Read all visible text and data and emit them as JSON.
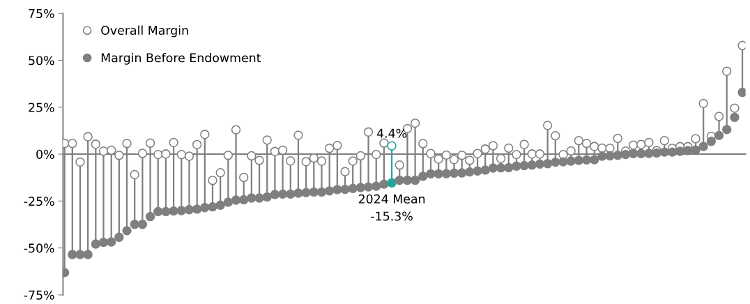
{
  "chart_data": {
    "type": "lollipop",
    "categories": [
      null,
      null,
      null,
      null,
      null,
      null,
      null,
      null,
      null,
      null,
      null,
      null,
      null,
      null,
      null,
      null,
      null,
      null,
      null,
      null,
      null,
      null,
      null,
      null,
      null,
      null,
      null,
      null,
      null,
      null,
      null,
      null,
      null,
      null,
      null,
      null,
      null,
      null,
      null,
      null,
      null,
      null,
      null,
      null,
      null,
      null,
      null,
      null,
      null,
      null,
      null,
      null,
      null,
      null,
      null,
      null,
      null,
      null,
      null,
      null,
      null,
      null,
      null,
      null,
      null,
      null,
      null,
      null,
      null,
      null,
      null,
      null,
      null,
      null,
      null,
      null,
      null,
      null,
      null,
      null,
      null,
      null,
      null,
      null,
      null,
      null,
      null,
      null
    ],
    "series": [
      {
        "name": "Overall Margin",
        "color": "#7f7f7f",
        "colors": [
          "#7f7f7f",
          "#7f7f7f",
          "#7f7f7f",
          "#7f7f7f",
          "#7f7f7f",
          "#7f7f7f",
          "#7f7f7f",
          "#7f7f7f",
          "#7f7f7f",
          "#7f7f7f",
          "#7f7f7f",
          "#7f7f7f",
          "#7f7f7f",
          "#7f7f7f",
          "#7f7f7f",
          "#7f7f7f",
          "#7f7f7f",
          "#7f7f7f",
          "#7f7f7f",
          "#7f7f7f",
          "#7f7f7f",
          "#7f7f7f",
          "#7f7f7f",
          "#7f7f7f",
          "#7f7f7f",
          "#7f7f7f",
          "#7f7f7f",
          "#7f7f7f",
          "#7f7f7f",
          "#7f7f7f",
          "#7f7f7f",
          "#7f7f7f",
          "#7f7f7f",
          "#7f7f7f",
          "#7f7f7f",
          "#7f7f7f",
          "#7f7f7f",
          "#7f7f7f",
          "#7f7f7f",
          "#7f7f7f",
          "#7f7f7f",
          "#7f7f7f",
          "#26a69a",
          "#7f7f7f",
          "#7f7f7f",
          "#7f7f7f",
          "#7f7f7f",
          "#7f7f7f",
          "#7f7f7f",
          "#7f7f7f",
          "#7f7f7f",
          "#7f7f7f",
          "#7f7f7f",
          "#7f7f7f",
          "#7f7f7f",
          "#7f7f7f",
          "#7f7f7f",
          "#7f7f7f",
          "#7f7f7f",
          "#7f7f7f",
          "#7f7f7f",
          "#7f7f7f",
          "#7f7f7f",
          "#7f7f7f",
          "#7f7f7f",
          "#7f7f7f",
          "#7f7f7f",
          "#7f7f7f",
          "#7f7f7f",
          "#7f7f7f",
          "#7f7f7f",
          "#7f7f7f",
          "#7f7f7f",
          "#7f7f7f",
          "#7f7f7f",
          "#7f7f7f",
          "#7f7f7f",
          "#7f7f7f",
          "#7f7f7f",
          "#7f7f7f",
          "#7f7f7f",
          "#7f7f7f",
          "#7f7f7f",
          "#7f7f7f",
          "#7f7f7f",
          "#7f7f7f",
          "#7f7f7f",
          "#7f7f7f"
        ],
        "values": [
          5.7,
          5.7,
          -4.2,
          9.3,
          5.3,
          1.6,
          2.1,
          -0.6,
          5.7,
          -10.9,
          0.4,
          5.9,
          -0.2,
          0.1,
          6.2,
          -0.2,
          -1.1,
          5.1,
          10.5,
          -14.0,
          -9.9,
          -0.6,
          13.0,
          -12.4,
          -0.9,
          -3.3,
          7.5,
          1.4,
          2.1,
          -3.6,
          10.1,
          -4.0,
          -2.1,
          -3.7,
          3.1,
          4.6,
          -9.3,
          -3.7,
          -0.9,
          11.8,
          -0.2,
          5.9,
          4.4,
          -5.8,
          13.6,
          16.5,
          5.6,
          0.3,
          -2.6,
          -0.5,
          -2.9,
          -0.6,
          -3.3,
          0.3,
          2.7,
          4.5,
          -2.3,
          3.2,
          -0.2,
          5.2,
          0.1,
          0.1,
          15.3,
          9.8,
          -0.2,
          1.7,
          7.2,
          5.7,
          4.1,
          3.2,
          3.1,
          8.4,
          1.6,
          4.8,
          5.2,
          6.2,
          1.9,
          7.2,
          3.1,
          4.0,
          4.0,
          8.2,
          27.0,
          9.4,
          20.1,
          44.2,
          24.5,
          57.9
        ]
      },
      {
        "name": "Margin Before Endowment",
        "color": "#7f7f7f",
        "colors": [
          "#7f7f7f",
          "#7f7f7f",
          "#7f7f7f",
          "#7f7f7f",
          "#7f7f7f",
          "#7f7f7f",
          "#7f7f7f",
          "#7f7f7f",
          "#7f7f7f",
          "#7f7f7f",
          "#7f7f7f",
          "#7f7f7f",
          "#7f7f7f",
          "#7f7f7f",
          "#7f7f7f",
          "#7f7f7f",
          "#7f7f7f",
          "#7f7f7f",
          "#7f7f7f",
          "#7f7f7f",
          "#7f7f7f",
          "#7f7f7f",
          "#7f7f7f",
          "#7f7f7f",
          "#7f7f7f",
          "#7f7f7f",
          "#7f7f7f",
          "#7f7f7f",
          "#7f7f7f",
          "#7f7f7f",
          "#7f7f7f",
          "#7f7f7f",
          "#7f7f7f",
          "#7f7f7f",
          "#7f7f7f",
          "#7f7f7f",
          "#7f7f7f",
          "#7f7f7f",
          "#7f7f7f",
          "#7f7f7f",
          "#7f7f7f",
          "#7f7f7f",
          "#26a69a",
          "#7f7f7f",
          "#7f7f7f",
          "#7f7f7f",
          "#7f7f7f",
          "#7f7f7f",
          "#7f7f7f",
          "#7f7f7f",
          "#7f7f7f",
          "#7f7f7f",
          "#7f7f7f",
          "#7f7f7f",
          "#7f7f7f",
          "#7f7f7f",
          "#7f7f7f",
          "#7f7f7f",
          "#7f7f7f",
          "#7f7f7f",
          "#7f7f7f",
          "#7f7f7f",
          "#7f7f7f",
          "#7f7f7f",
          "#7f7f7f",
          "#7f7f7f",
          "#7f7f7f",
          "#7f7f7f",
          "#7f7f7f",
          "#7f7f7f",
          "#7f7f7f",
          "#7f7f7f",
          "#7f7f7f",
          "#7f7f7f",
          "#7f7f7f",
          "#7f7f7f",
          "#7f7f7f",
          "#7f7f7f",
          "#7f7f7f",
          "#7f7f7f",
          "#7f7f7f",
          "#7f7f7f",
          "#7f7f7f",
          "#7f7f7f",
          "#7f7f7f",
          "#7f7f7f",
          "#7f7f7f",
          "#7f7f7f"
        ],
        "values": [
          -63.1,
          -53.5,
          -53.5,
          -53.5,
          -47.9,
          -47.0,
          -46.8,
          -44.3,
          -40.8,
          -37.4,
          -37.4,
          -33.3,
          -30.6,
          -30.6,
          -30.3,
          -30.1,
          -29.6,
          -29.3,
          -28.5,
          -28.1,
          -27.2,
          -25.6,
          -24.5,
          -24.3,
          -23.4,
          -23.4,
          -22.8,
          -21.5,
          -21.3,
          -21.3,
          -20.8,
          -20.5,
          -20.2,
          -20.2,
          -19.6,
          -18.9,
          -18.8,
          -18.3,
          -17.8,
          -17.5,
          -17.1,
          -16.0,
          -15.3,
          -13.9,
          -13.9,
          -13.9,
          -11.8,
          -10.5,
          -10.5,
          -10.4,
          -10.1,
          -10.0,
          -9.5,
          -9.0,
          -8.5,
          -7.4,
          -7.3,
          -7.2,
          -6.4,
          -6.1,
          -5.8,
          -5.3,
          -5.1,
          -4.3,
          -4.1,
          -3.7,
          -3.3,
          -3.1,
          -3.0,
          -1.1,
          -0.9,
          -0.6,
          -0.2,
          0.3,
          0.3,
          0.4,
          0.6,
          1.1,
          1.1,
          1.5,
          1.9,
          2.2,
          4.1,
          6.8,
          9.9,
          13.1,
          19.6,
          32.9
        ]
      }
    ],
    "ylim": [
      -75,
      75
    ],
    "yticks": [
      {
        "value": -75,
        "label": "-75%"
      },
      {
        "value": -50,
        "label": "-50%"
      },
      {
        "value": -25,
        "label": "-25%"
      },
      {
        "value": 0,
        "label": "0%"
      },
      {
        "value": 25,
        "label": "25%"
      },
      {
        "value": 50,
        "label": "50%"
      },
      {
        "value": 75,
        "label": "75%"
      }
    ],
    "marker": "circle",
    "legend": "top left",
    "annotations": [
      {
        "text": "4.4%",
        "y": 4.4
      },
      {
        "text": "2024 Mean\n-15.3%",
        "y": -15.3
      }
    ]
  }
}
